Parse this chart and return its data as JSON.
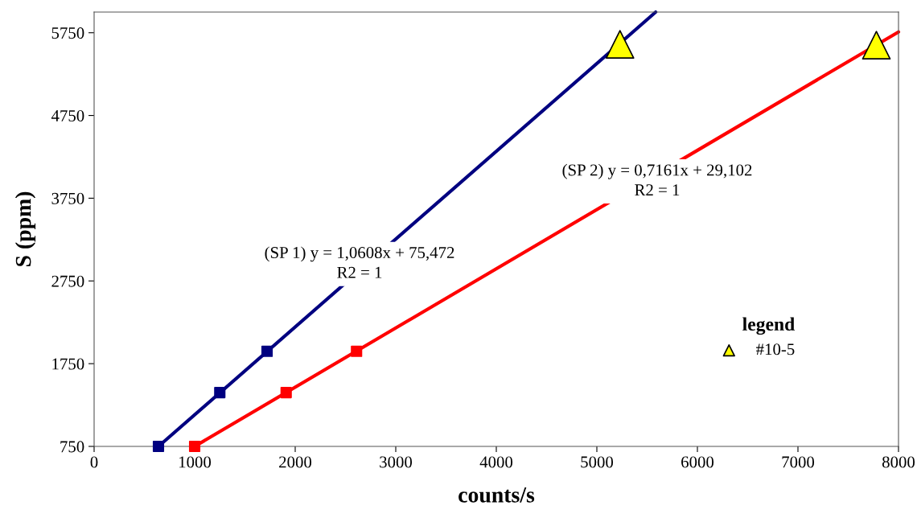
{
  "chart_data": {
    "type": "scatter",
    "xlabel": "counts/s",
    "ylabel": "S (ppm)",
    "legend_title": "legend",
    "legend": "right",
    "grid": false,
    "xlim": [
      0,
      8000
    ],
    "xticks": [
      0,
      1000,
      2000,
      3000,
      4000,
      5000,
      6000,
      7000,
      8000
    ],
    "ylim": [
      750,
      6000
    ],
    "yticks": [
      750,
      1750,
      2750,
      3750,
      4750,
      5750
    ],
    "series": [
      {
        "type": "line",
        "color": "#000080",
        "marker": "none",
        "line_style": "solid",
        "x": [
          640,
          5585
        ],
        "values": [
          750,
          6000
        ]
      },
      {
        "type": "line",
        "color": "#ff0000",
        "marker": "none",
        "line_style": "solid",
        "x": [
          1000,
          8000
        ],
        "values": [
          750,
          5760
        ]
      },
      {
        "color": "#000080",
        "marker": "square",
        "x": [
          640,
          1250,
          1720
        ],
        "values": [
          750,
          1400,
          1900
        ]
      },
      {
        "color": "#ff0000",
        "marker": "square",
        "x": [
          1000,
          1910,
          2610
        ],
        "values": [
          750,
          1400,
          1900
        ]
      },
      {
        "name": "#10-5",
        "color": "#ffff00",
        "marker": "triangle",
        "x": [
          5230,
          7780
        ],
        "values": [
          5610,
          5600
        ]
      }
    ],
    "annotations": [
      "(SP 1) y = 1,0608x + 75,472\nR2 = 1",
      "(SP 2) y = 0,7161x + 29,102\nR2 = 1"
    ]
  }
}
